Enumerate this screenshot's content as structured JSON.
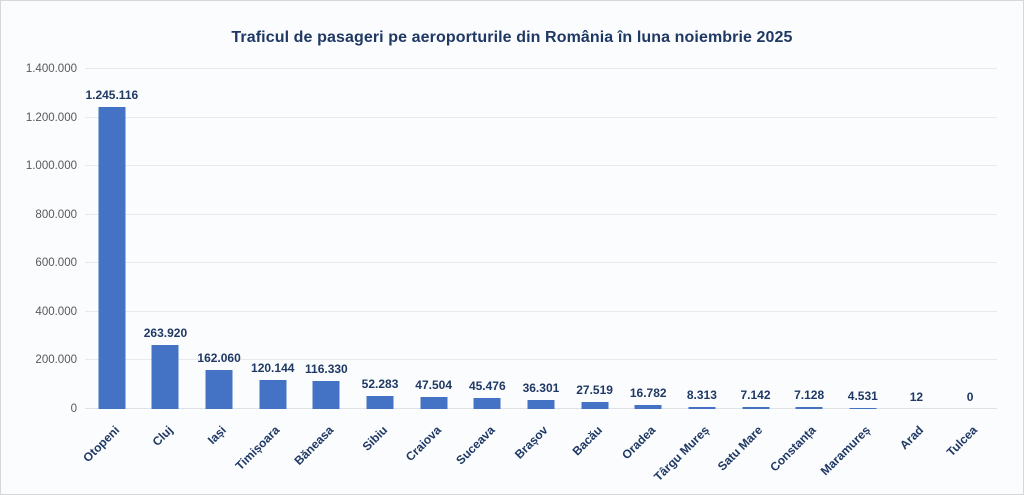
{
  "chart_data": {
    "type": "bar",
    "title": "Traficul de pasageri pe aeroporturile din România în luna noiembrie 2025",
    "categories": [
      "Otopeni",
      "Cluj",
      "Iași",
      "Timișoara",
      "Băneasa",
      "Sibiu",
      "Craiova",
      "Suceava",
      "Brașov",
      "Bacău",
      "Oradea",
      "Târgu Mureș",
      "Satu Mare",
      "Constanța",
      "Maramureș",
      "Arad",
      "Tulcea"
    ],
    "values": [
      1245116,
      263920,
      162060,
      120144,
      116330,
      52283,
      47504,
      45476,
      36301,
      27519,
      16782,
      8313,
      7142,
      7128,
      4531,
      12,
      0
    ],
    "value_labels": [
      "1.245.116",
      "263.920",
      "162.060",
      "120.144",
      "116.330",
      "52.283",
      "47.504",
      "45.476",
      "36.301",
      "27.519",
      "16.782",
      "8.313",
      "7.142",
      "7.128",
      "4.531",
      "12",
      "0"
    ],
    "xlabel": "",
    "ylabel": "",
    "ylim": [
      0,
      1400000
    ],
    "ytick_step": 200000,
    "y_tick_labels": [
      "0",
      "200.000",
      "400.000",
      "600.000",
      "800.000",
      "1.000.000",
      "1.200.000",
      "1.400.000"
    ],
    "grid": true,
    "legend": false,
    "bar_color": "#4472c4",
    "label_color": "#1f3864",
    "tick_color": "#595959"
  }
}
